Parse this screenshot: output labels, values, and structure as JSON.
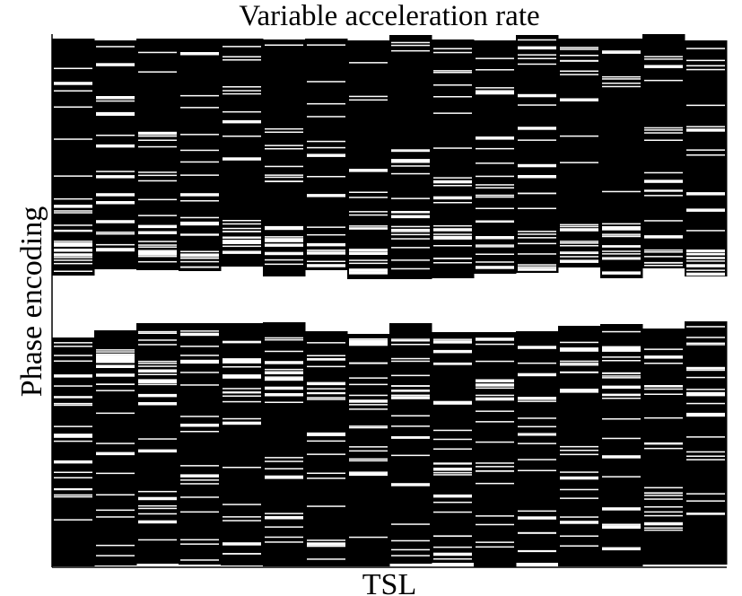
{
  "chart_data": {
    "type": "mask",
    "title": "Variable acceleration rate",
    "x_label": "TSL",
    "y_label": "Phase encoding"
  }
}
